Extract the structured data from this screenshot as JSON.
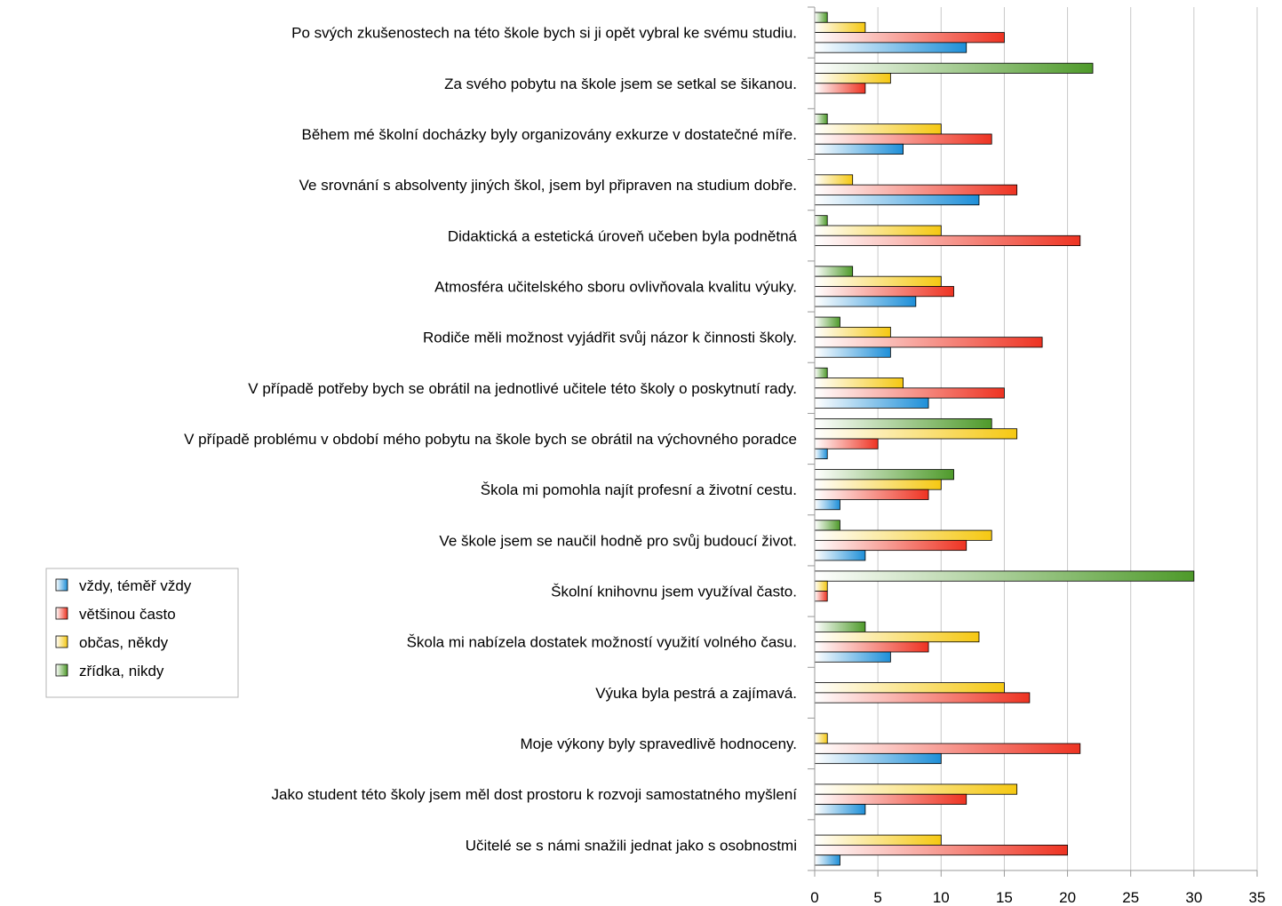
{
  "chart_data": {
    "type": "bar",
    "orientation": "horizontal",
    "categories": [
      "Po svých zkušenostech na této škole bych si ji opět vybral ke svému studiu.",
      "Za svého pobytu na škole jsem se setkal se šikanou.",
      "Během mé školní docházky byly organizovány exkurze v dostatečné míře.",
      "Ve srovnání s absolventy jiných škol, jsem byl připraven na studium dobře.",
      "Didaktická a estetická úroveň učeben byla podnětná",
      "Atmosféra učitelského sboru ovlivňovala kvalitu výuky.",
      "Rodiče měli možnost vyjádřit svůj názor k činnosti školy.",
      "V případě potřeby bych se obrátil na jednotlivé učitele této školy o poskytnutí rady.",
      "V případě problému v období mého pobytu na škole bych se obrátil na výchovného poradce",
      "Škola mi pomohla najít profesní a životní cestu.",
      "Ve škole jsem se naučil hodně pro svůj budoucí život.",
      "Školní knihovnu jsem využíval často.",
      "Škola mi nabízela dostatek možností využití volného času.",
      "Výuka byla pestrá a zajímavá.",
      "Moje výkony byly spravedlivě hodnoceny.",
      "Jako student této školy jsem měl dost prostoru k rozvoji samostatného myšlení",
      "Učitelé se s námi snažili jednat jako s osobnostmi"
    ],
    "series": [
      {
        "name": "vždy, téměř vždy",
        "color": "#1e8fd8",
        "values": [
          12,
          0,
          7,
          13,
          0,
          8,
          6,
          9,
          1,
          2,
          4,
          0,
          6,
          0,
          10,
          4,
          2
        ]
      },
      {
        "name": "většinou často",
        "color": "#ee3322",
        "values": [
          15,
          4,
          14,
          16,
          21,
          11,
          18,
          15,
          5,
          9,
          12,
          1,
          9,
          17,
          21,
          12,
          20
        ]
      },
      {
        "name": "občas, někdy",
        "color": "#f5c812",
        "values": [
          4,
          6,
          10,
          3,
          10,
          10,
          6,
          7,
          16,
          10,
          14,
          1,
          13,
          15,
          1,
          16,
          10
        ]
      },
      {
        "name": "zřídka, nikdy",
        "color": "#4e9a2a",
        "values": [
          1,
          22,
          1,
          0,
          1,
          3,
          2,
          1,
          14,
          11,
          2,
          30,
          4,
          0,
          0,
          0,
          0
        ]
      }
    ],
    "xlim": [
      0,
      35
    ],
    "xticks": [
      "0",
      "5",
      "10",
      "15",
      "20",
      "25",
      "30",
      "35"
    ],
    "grid": "vertical",
    "legend": "left"
  }
}
